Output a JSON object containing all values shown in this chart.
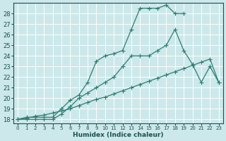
{
  "xlabel": "Humidex (Indice chaleur)",
  "bg_color": "#cce8ea",
  "grid_color": "#ffffff",
  "line_color": "#2e7d72",
  "xlim": [
    -0.5,
    23.5
  ],
  "ylim": [
    17.6,
    29.0
  ],
  "yticks": [
    18,
    19,
    20,
    21,
    22,
    23,
    24,
    25,
    26,
    27,
    28
  ],
  "xticks": [
    0,
    1,
    2,
    3,
    4,
    5,
    6,
    7,
    8,
    9,
    10,
    11,
    12,
    13,
    14,
    15,
    16,
    17,
    18,
    19,
    20,
    21,
    22,
    23
  ],
  "line1_x": [
    0,
    1,
    2,
    3,
    4,
    5,
    6,
    7,
    8,
    9,
    10,
    11,
    12,
    13,
    14,
    15,
    16,
    17,
    18,
    19
  ],
  "line1_y": [
    18,
    18.2,
    18.2,
    18.2,
    18.2,
    19.0,
    19.8,
    20.3,
    21.5,
    23.5,
    24.0,
    24.2,
    24.5,
    26.5,
    28.5,
    28.5,
    28.5,
    28.8,
    28.0,
    28.0
  ],
  "line2_x": [
    0,
    1,
    2,
    3,
    4,
    5,
    6,
    7,
    8,
    9,
    10,
    11,
    12,
    13,
    14,
    15,
    16,
    17,
    18,
    19,
    20,
    21,
    22,
    23
  ],
  "line2_y": [
    18,
    18,
    18,
    18,
    18,
    18.5,
    19.2,
    20.0,
    20.5,
    21.0,
    21.5,
    22.0,
    23.0,
    24.0,
    24.0,
    24.0,
    24.5,
    25.0,
    26.5,
    24.5,
    23.2,
    21.5,
    23.0,
    21.5
  ],
  "line3_x": [
    0,
    1,
    2,
    3,
    4,
    5,
    6,
    7,
    8,
    9,
    10,
    11,
    12,
    13,
    14,
    15,
    16,
    17,
    18,
    19,
    20,
    21,
    22,
    23
  ],
  "line3_y": [
    18,
    18.1,
    18.3,
    18.4,
    18.6,
    18.8,
    19.0,
    19.3,
    19.6,
    19.9,
    20.1,
    20.4,
    20.7,
    21.0,
    21.3,
    21.6,
    21.9,
    22.2,
    22.5,
    22.8,
    23.1,
    23.4,
    23.7,
    21.5
  ]
}
